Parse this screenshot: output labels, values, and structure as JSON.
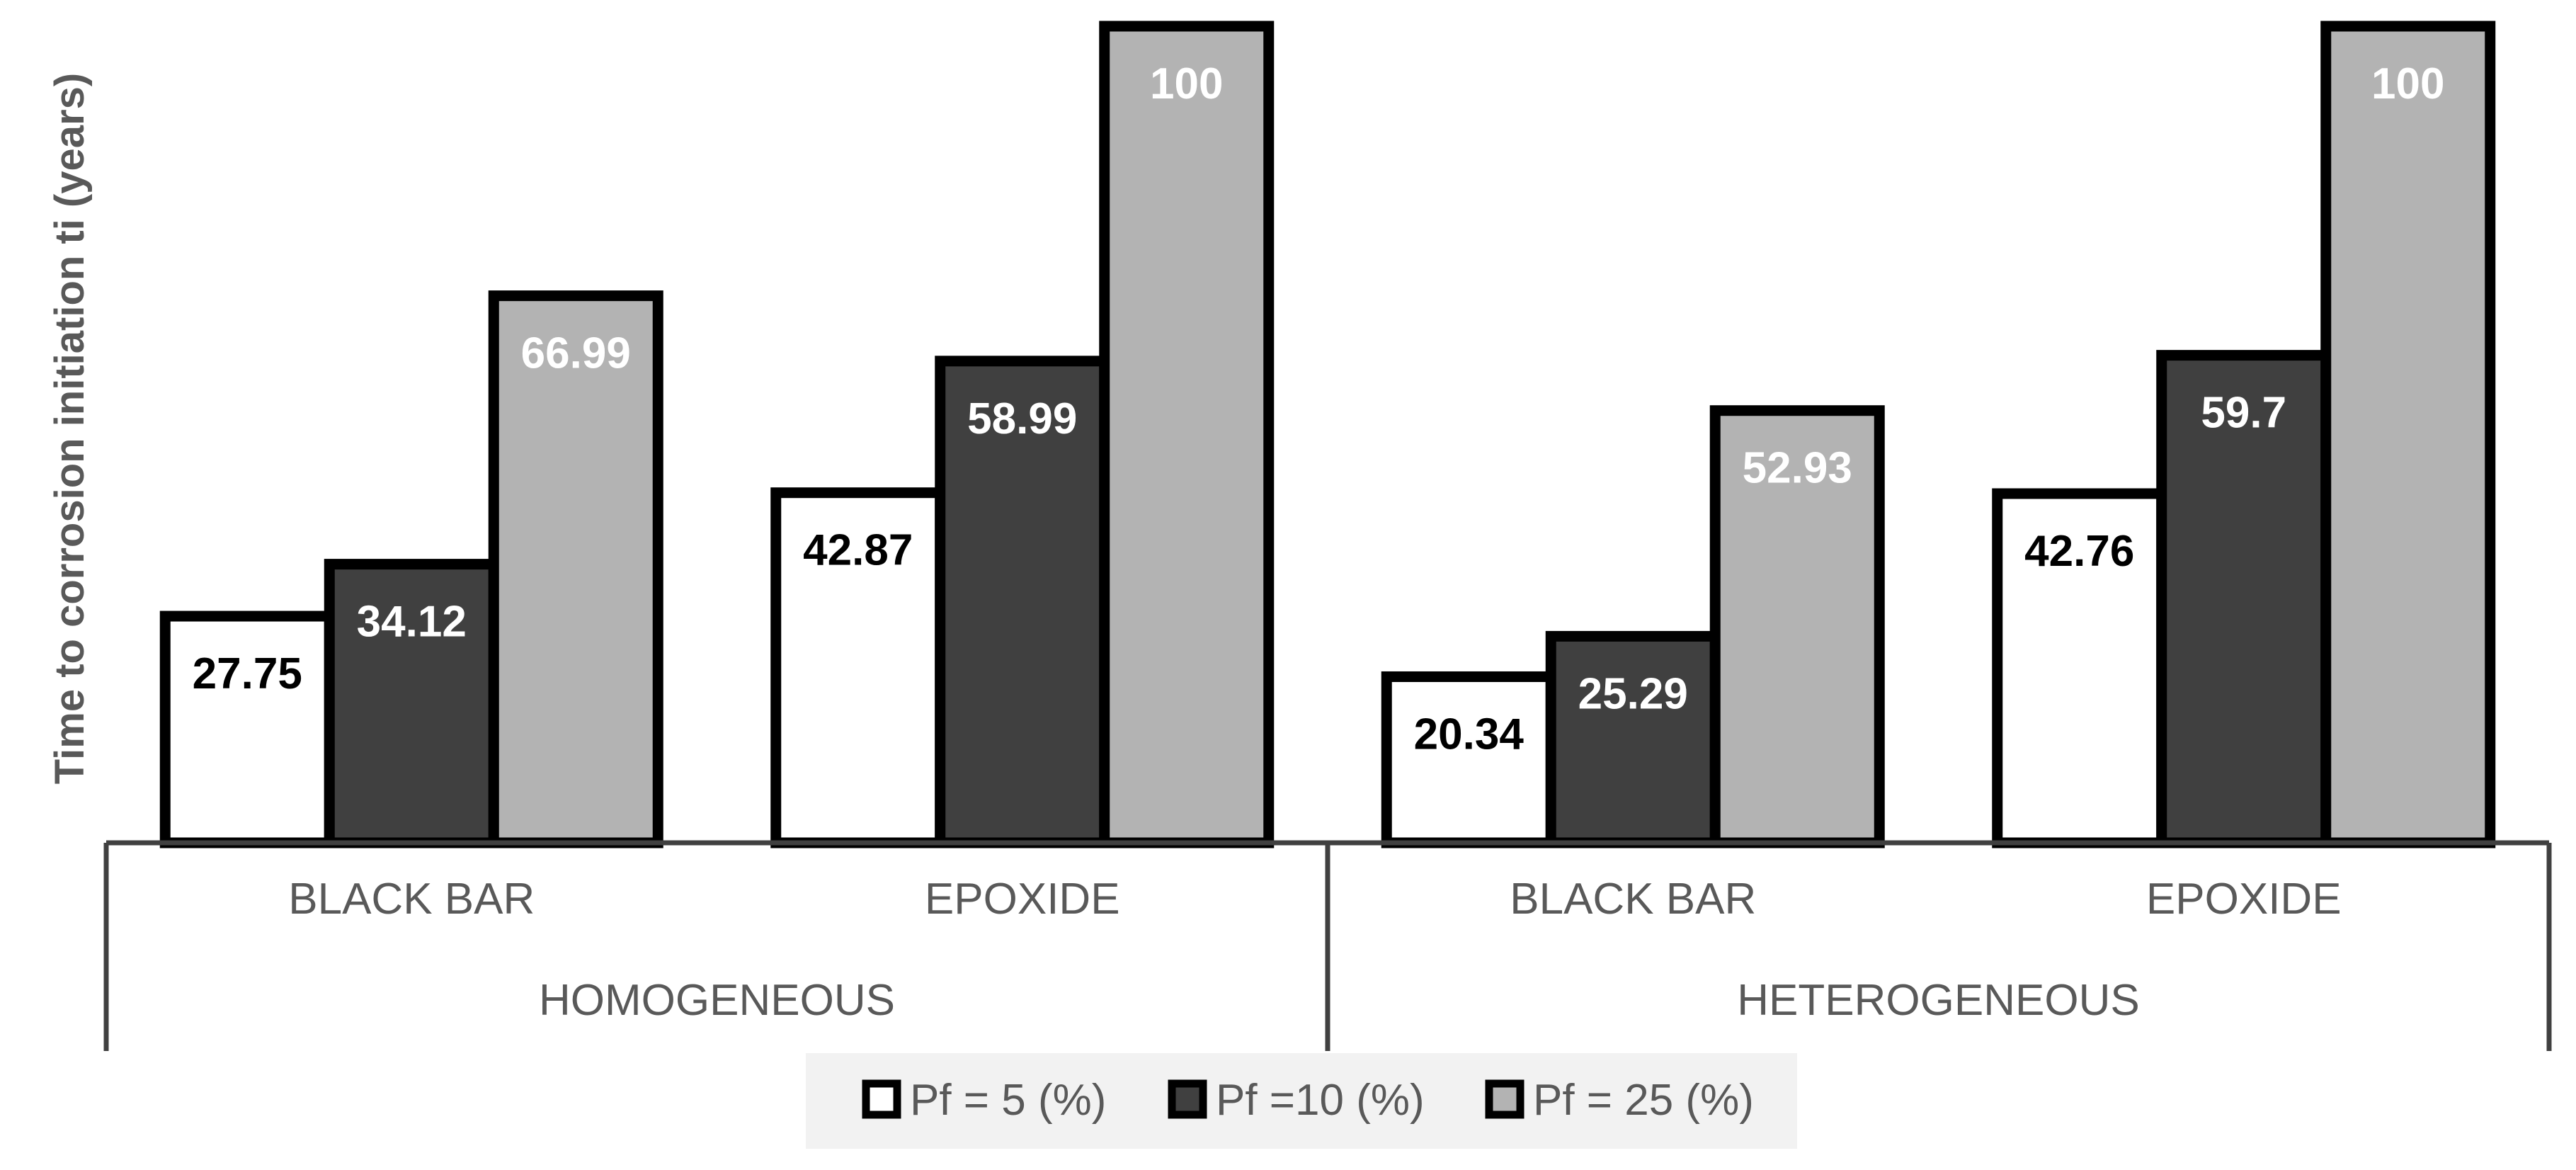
{
  "chart_data": {
    "type": "bar",
    "title": "",
    "ylabel": "Time to corrosion initiation ti (years)",
    "xlabel": "",
    "ylim": [
      0,
      100
    ],
    "grid": false,
    "legend_position": "bottom",
    "groups": [
      {
        "label": "HOMOGENEOUS",
        "categories": [
          "BLACK BAR",
          "EPOXIDE"
        ]
      },
      {
        "label": "HETEROGENEOUS",
        "categories": [
          "BLACK BAR",
          "EPOXIDE"
        ]
      }
    ],
    "categories": [
      "BLACK BAR",
      "EPOXIDE",
      "BLACK BAR",
      "EPOXIDE"
    ],
    "series": [
      {
        "name": "Pf = 5 (%)",
        "color": "#ffffff",
        "label_color": "#000000",
        "values": [
          27.75,
          42.87,
          20.34,
          42.76
        ],
        "labels": [
          "27.75",
          "42.87",
          "20.34",
          "42.76"
        ]
      },
      {
        "name": "Pf =10 (%)",
        "color": "#404040",
        "label_color": "#ffffff",
        "values": [
          34.12,
          58.99,
          25.29,
          59.7
        ],
        "labels": [
          "34.12",
          "58.99",
          "25.29",
          "59.7"
        ]
      },
      {
        "name": "Pf = 25 (%)",
        "color": "#b3b3b3",
        "label_color": "#ffffff",
        "values": [
          66.99,
          100,
          52.93,
          100
        ],
        "labels": [
          "66.99",
          "100",
          "52.93",
          "100"
        ]
      }
    ]
  }
}
